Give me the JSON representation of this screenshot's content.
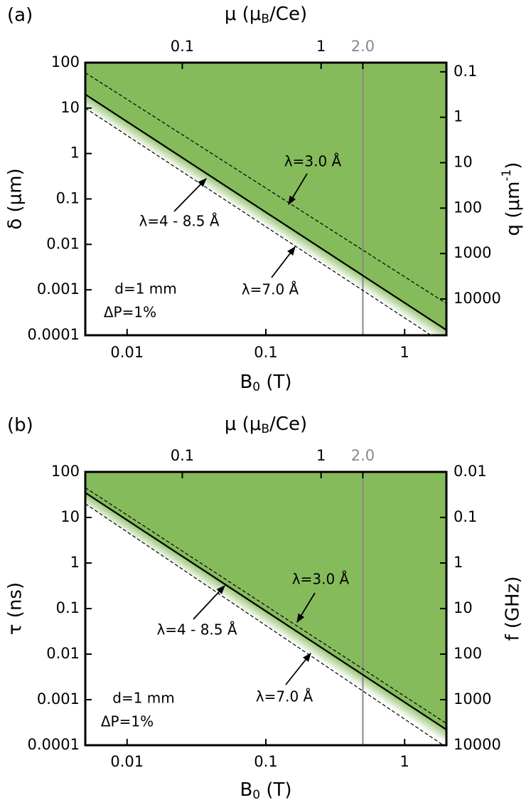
{
  "chart_data": [
    {
      "type": "area",
      "panel_label": "(a)",
      "log": true,
      "x_label": [
        "B",
        "0",
        " (T)"
      ],
      "x2_label": [
        "μ (μ",
        "B",
        "/Ce)"
      ],
      "y_label": "δ (μm)",
      "y2_label": [
        "q (μm",
        "-1",
        ")"
      ],
      "xlim": [
        0.005,
        2
      ],
      "xticks": [
        0.01,
        0.1,
        1
      ],
      "x2lim": [
        0.02,
        8
      ],
      "x2ticks": [
        0.1,
        1,
        {
          "value": 2,
          "label": "2.0",
          "color": "#888888"
        }
      ],
      "ylim": [
        0.0001,
        100
      ],
      "yticks": [
        0.0001,
        0.001,
        0.01,
        0.1,
        1,
        10,
        100
      ],
      "y2lim": [
        62832,
        0.0628
      ],
      "y2ticks": [
        0.1,
        1,
        10,
        100,
        1000,
        10000
      ],
      "reference_line": {
        "x2": 2,
        "color": "#888888"
      },
      "series": [
        {
          "x": [
            0.005,
            2
          ],
          "values": [
            60,
            0.0005
          ],
          "color": "#000000",
          "dash": true
        },
        {
          "x": [
            0.005,
            2
          ],
          "values": [
            20,
            0.00013
          ],
          "color": "#000000",
          "dash": false,
          "fill": "#86bb5c"
        },
        {
          "x": [
            0.005,
            2
          ],
          "values": [
            10,
            6e-05
          ],
          "color": "#000000",
          "dash": true,
          "fade": true
        }
      ],
      "annotations": [
        "λ=3.0 Å",
        "λ=4 - 8.5 Å",
        "λ=7.0 Å",
        "d=1 mm",
        "ΔP=1%"
      ]
    },
    {
      "type": "area",
      "panel_label": "(b)",
      "log": true,
      "x_label": [
        "B",
        "0",
        " (T)"
      ],
      "x2_label": [
        "μ (μ",
        "B",
        "/Ce)"
      ],
      "y_label": "τ (ns)",
      "y2_label": "f (GHz)",
      "xlim": [
        0.005,
        2
      ],
      "xticks": [
        0.01,
        0.1,
        1
      ],
      "x2lim": [
        0.02,
        8
      ],
      "x2ticks": [
        0.1,
        1,
        {
          "value": 2,
          "label": "2.0",
          "color": "#888888"
        }
      ],
      "ylim": [
        0.0001,
        100
      ],
      "yticks": [
        0.0001,
        0.001,
        0.01,
        0.1,
        1,
        10,
        100
      ],
      "y2lim": [
        10000,
        0.01
      ],
      "y2ticks": [
        0.01,
        0.1,
        1,
        10,
        100,
        1000,
        10000
      ],
      "reference_line": {
        "x2": 2,
        "color": "#888888"
      },
      "series": [
        {
          "x": [
            0.005,
            2
          ],
          "values": [
            45,
            0.0003
          ],
          "color": "#000000",
          "dash": true
        },
        {
          "x": [
            0.005,
            2
          ],
          "values": [
            35,
            0.00022
          ],
          "color": "#000000",
          "dash": false,
          "fill": "#86bb5c"
        },
        {
          "x": [
            0.005,
            2
          ],
          "values": [
            20,
            9e-05
          ],
          "color": "#000000",
          "dash": true,
          "fade": true
        }
      ],
      "annotations": [
        "λ=3.0 Å",
        "λ=4 - 8.5 Å",
        "λ=7.0 Å",
        "d=1 mm",
        "ΔP=1%"
      ]
    }
  ]
}
